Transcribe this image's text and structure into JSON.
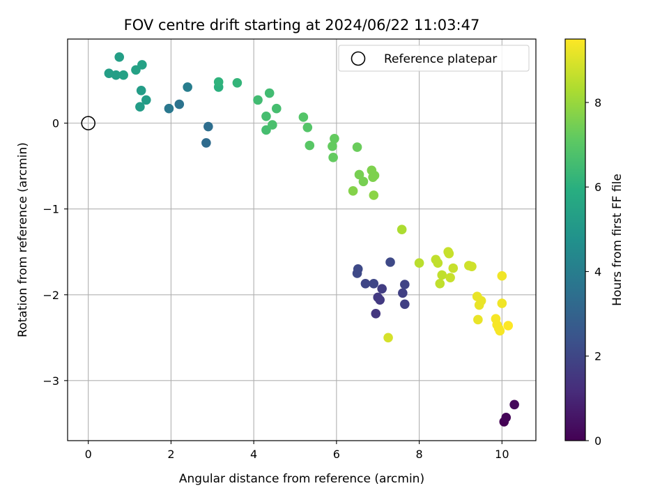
{
  "chart_data": {
    "type": "scatter",
    "title": "FOV centre drift starting at 2024/06/22 11:03:47",
    "xlabel": "Angular distance from reference (arcmin)",
    "ylabel": "Rotation from reference (arcmin)",
    "xlim": [
      -0.5,
      10.82
    ],
    "ylim": [
      -3.7,
      0.98
    ],
    "xticks": [
      0,
      2,
      4,
      6,
      8,
      10
    ],
    "yticks": [
      0,
      -1,
      -2,
      -3
    ],
    "ytick_labels": [
      "0",
      "−1",
      "−2",
      "−3"
    ],
    "grid": true,
    "legend": {
      "location": "top-right",
      "entries": [
        "Reference platepar"
      ]
    },
    "reference_point": {
      "x": 0,
      "y": 0,
      "label": "Reference platepar"
    },
    "colorbar": {
      "label": "Hours from first FF file",
      "min": 0,
      "max": 9.5,
      "ticks": [
        0,
        2,
        4,
        6,
        8
      ],
      "colormap": "viridis"
    },
    "points": [
      {
        "x": 10.05,
        "y": -3.48,
        "c": 0.0
      },
      {
        "x": 10.1,
        "y": -3.43,
        "c": 0.1
      },
      {
        "x": 10.3,
        "y": -3.28,
        "c": 0.2
      },
      {
        "x": 7.25,
        "y": -2.5,
        "c": 8.9
      },
      {
        "x": 6.95,
        "y": -2.22,
        "c": 1.5
      },
      {
        "x": 7.0,
        "y": -2.03,
        "c": 1.6
      },
      {
        "x": 7.05,
        "y": -2.06,
        "c": 1.6
      },
      {
        "x": 7.1,
        "y": -1.93,
        "c": 1.7
      },
      {
        "x": 7.65,
        "y": -2.11,
        "c": 1.8
      },
      {
        "x": 7.6,
        "y": -1.98,
        "c": 1.8
      },
      {
        "x": 7.65,
        "y": -1.88,
        "c": 1.9
      },
      {
        "x": 6.7,
        "y": -1.87,
        "c": 2.0
      },
      {
        "x": 6.9,
        "y": -1.87,
        "c": 2.0
      },
      {
        "x": 6.5,
        "y": -1.75,
        "c": 2.1
      },
      {
        "x": 6.52,
        "y": -1.7,
        "c": 2.1
      },
      {
        "x": 7.3,
        "y": -1.62,
        "c": 2.1
      },
      {
        "x": 2.85,
        "y": -0.23,
        "c": 3.3
      },
      {
        "x": 2.9,
        "y": -0.04,
        "c": 3.4
      },
      {
        "x": 2.2,
        "y": 0.22,
        "c": 3.6
      },
      {
        "x": 1.95,
        "y": 0.17,
        "c": 3.8
      },
      {
        "x": 2.4,
        "y": 0.42,
        "c": 4.0
      },
      {
        "x": 1.25,
        "y": 0.19,
        "c": 5.2
      },
      {
        "x": 1.4,
        "y": 0.27,
        "c": 5.2
      },
      {
        "x": 1.28,
        "y": 0.38,
        "c": 5.2
      },
      {
        "x": 0.5,
        "y": 0.58,
        "c": 5.3
      },
      {
        "x": 0.67,
        "y": 0.56,
        "c": 5.3
      },
      {
        "x": 0.85,
        "y": 0.56,
        "c": 5.4
      },
      {
        "x": 1.15,
        "y": 0.62,
        "c": 5.4
      },
      {
        "x": 1.3,
        "y": 0.68,
        "c": 5.4
      },
      {
        "x": 0.75,
        "y": 0.77,
        "c": 5.3
      },
      {
        "x": 3.15,
        "y": 0.42,
        "c": 6.0
      },
      {
        "x": 3.15,
        "y": 0.48,
        "c": 6.1
      },
      {
        "x": 3.6,
        "y": 0.47,
        "c": 6.2
      },
      {
        "x": 4.1,
        "y": 0.27,
        "c": 6.5
      },
      {
        "x": 4.38,
        "y": 0.35,
        "c": 6.5
      },
      {
        "x": 4.3,
        "y": 0.08,
        "c": 6.6
      },
      {
        "x": 4.55,
        "y": 0.17,
        "c": 6.6
      },
      {
        "x": 4.3,
        "y": -0.08,
        "c": 6.6
      },
      {
        "x": 4.45,
        "y": -0.02,
        "c": 6.7
      },
      {
        "x": 5.2,
        "y": 0.07,
        "c": 6.9
      },
      {
        "x": 5.3,
        "y": -0.05,
        "c": 6.9
      },
      {
        "x": 5.35,
        "y": -0.26,
        "c": 7.0
      },
      {
        "x": 5.95,
        "y": -0.18,
        "c": 7.2
      },
      {
        "x": 5.9,
        "y": -0.27,
        "c": 7.2
      },
      {
        "x": 5.92,
        "y": -0.4,
        "c": 7.2
      },
      {
        "x": 6.5,
        "y": -0.28,
        "c": 7.3
      },
      {
        "x": 6.55,
        "y": -0.6,
        "c": 7.5
      },
      {
        "x": 6.65,
        "y": -0.68,
        "c": 7.5
      },
      {
        "x": 6.85,
        "y": -0.55,
        "c": 7.6
      },
      {
        "x": 6.92,
        "y": -0.61,
        "c": 7.6
      },
      {
        "x": 6.88,
        "y": -0.63,
        "c": 7.6
      },
      {
        "x": 6.4,
        "y": -0.79,
        "c": 7.7
      },
      {
        "x": 6.9,
        "y": -0.84,
        "c": 7.8
      },
      {
        "x": 7.58,
        "y": -1.24,
        "c": 8.3
      },
      {
        "x": 8.0,
        "y": -1.63,
        "c": 8.5
      },
      {
        "x": 8.4,
        "y": -1.59,
        "c": 8.6
      },
      {
        "x": 8.45,
        "y": -1.63,
        "c": 8.6
      },
      {
        "x": 8.55,
        "y": -1.77,
        "c": 8.6
      },
      {
        "x": 8.5,
        "y": -1.87,
        "c": 8.6
      },
      {
        "x": 8.7,
        "y": -1.5,
        "c": 8.7
      },
      {
        "x": 8.72,
        "y": -1.52,
        "c": 8.7
      },
      {
        "x": 8.75,
        "y": -1.8,
        "c": 8.7
      },
      {
        "x": 8.82,
        "y": -1.69,
        "c": 8.7
      },
      {
        "x": 9.2,
        "y": -1.66,
        "c": 8.8
      },
      {
        "x": 9.27,
        "y": -1.67,
        "c": 8.8
      },
      {
        "x": 9.4,
        "y": -2.02,
        "c": 9.2
      },
      {
        "x": 9.45,
        "y": -2.12,
        "c": 9.2
      },
      {
        "x": 9.5,
        "y": -2.07,
        "c": 9.2
      },
      {
        "x": 9.42,
        "y": -2.29,
        "c": 9.2
      },
      {
        "x": 10.0,
        "y": -1.78,
        "c": 9.3
      },
      {
        "x": 10.0,
        "y": -2.1,
        "c": 9.3
      },
      {
        "x": 9.85,
        "y": -2.28,
        "c": 9.4
      },
      {
        "x": 9.88,
        "y": -2.35,
        "c": 9.4
      },
      {
        "x": 9.92,
        "y": -2.39,
        "c": 9.4
      },
      {
        "x": 9.95,
        "y": -2.42,
        "c": 9.4
      },
      {
        "x": 10.15,
        "y": -2.36,
        "c": 9.5
      }
    ]
  }
}
